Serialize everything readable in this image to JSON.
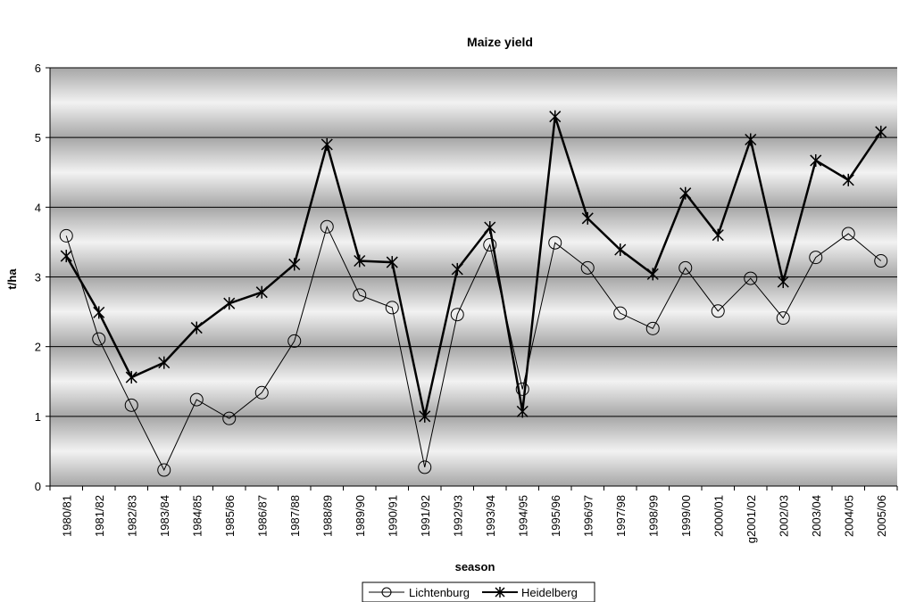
{
  "chart_data": {
    "type": "line",
    "title": "Maize yield",
    "xlabel": "season",
    "ylabel": "t/ha",
    "ylim": [
      0,
      6
    ],
    "yticks": [
      "0",
      "1",
      "2",
      "3",
      "4",
      "5",
      "6"
    ],
    "grid": true,
    "legend_position": "bottom",
    "categories": [
      "1980/81",
      "1981/82",
      "1982/83",
      "1983/84",
      "1984/85",
      "1985/86",
      "1986/87",
      "1987/88",
      "1988/89",
      "1989/90",
      "1990/91",
      "1991/92",
      "1992/93",
      "1993/94",
      "1994/95",
      "1995/96",
      "1996/97",
      "1997/98",
      "1998/99",
      "1999/00",
      "2000/01",
      "g2001/02",
      "2002/03",
      "2003/04",
      "2004/05",
      "2005/06"
    ],
    "series": [
      {
        "name": "Lichtenburg",
        "marker": "circle",
        "color": "#000000",
        "values": [
          3.59,
          2.11,
          1.16,
          0.23,
          1.24,
          0.97,
          1.34,
          2.08,
          3.72,
          2.74,
          2.56,
          0.27,
          2.46,
          3.46,
          1.39,
          3.49,
          3.13,
          2.48,
          2.26,
          3.13,
          2.51,
          2.98,
          2.41,
          3.28,
          3.62,
          3.23
        ]
      },
      {
        "name": "Heidelberg",
        "marker": "star",
        "color": "#000000",
        "values": [
          3.3,
          2.49,
          1.56,
          1.77,
          2.27,
          2.62,
          2.78,
          3.18,
          4.9,
          3.23,
          3.21,
          1.0,
          3.11,
          3.71,
          1.07,
          5.3,
          3.84,
          3.39,
          3.04,
          4.2,
          3.6,
          4.97,
          2.93,
          4.67,
          4.39,
          5.08
        ]
      }
    ]
  }
}
